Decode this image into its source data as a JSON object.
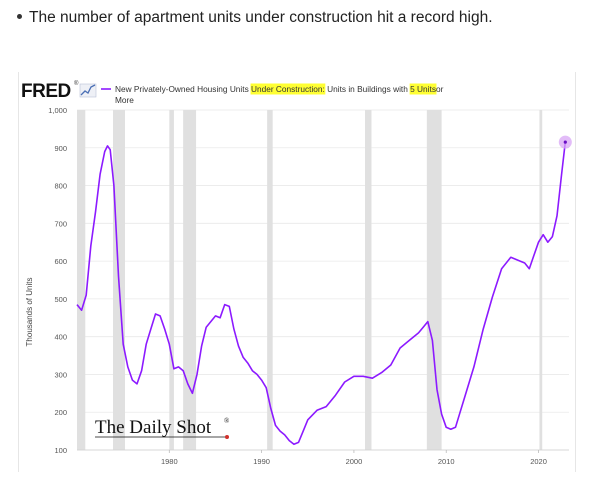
{
  "headline": "The number of apartment units under construction hit a record high.",
  "logo": {
    "text": "FRED",
    "trademark": "®",
    "icon": "fred-chart-icon"
  },
  "watermark": {
    "text": "The Daily Shot",
    "trademark": "®"
  },
  "colors": {
    "series": "#8c1aff",
    "recession": "#e0e0e0",
    "highlight": "#ffff33",
    "last_point_halo": "#d8a6f5"
  },
  "chart_data": {
    "type": "line",
    "title_parts": [
      {
        "text": "New Privately-Owned Housing Units ",
        "highlight": false
      },
      {
        "text": "Under Construction:",
        "highlight": true
      },
      {
        "text": " Units in Buildings with ",
        "highlight": false
      },
      {
        "text": "5 Units",
        "highlight": true
      },
      {
        "text": " or More",
        "highlight": false
      }
    ],
    "ylabel": "Thousands of Units",
    "xlabel": "",
    "ylim": [
      100,
      1000
    ],
    "xlim": [
      1970.0,
      2023.3
    ],
    "yticks": [
      "100",
      "200",
      "300",
      "400",
      "500",
      "600",
      "700",
      "800",
      "900",
      "1,000"
    ],
    "xticks": [
      "1980",
      "1990",
      "2000",
      "2010",
      "2020"
    ],
    "grid": "horizontal",
    "recessions": [
      [
        1970.0,
        1970.9
      ],
      [
        1973.9,
        1975.2
      ],
      [
        1980.0,
        1980.5
      ],
      [
        1981.5,
        1982.9
      ],
      [
        1990.6,
        1991.2
      ],
      [
        2001.2,
        2001.9
      ],
      [
        2007.9,
        2009.5
      ],
      [
        2020.1,
        2020.4
      ]
    ],
    "series": [
      {
        "x": [
          1970.0,
          1970.5,
          1971.0,
          1971.5,
          1972.0,
          1972.5,
          1973.0,
          1973.3,
          1973.6,
          1974.0,
          1974.5,
          1975.0,
          1975.5,
          1976.0,
          1976.5,
          1977.0,
          1977.5,
          1978.0,
          1978.5,
          1979.0,
          1979.5,
          1980.0,
          1980.5,
          1981.0,
          1981.5,
          1982.0,
          1982.5,
          1983.0,
          1983.5,
          1984.0,
          1984.5,
          1985.0,
          1985.5,
          1986.0,
          1986.5,
          1987.0,
          1987.5,
          1988.0,
          1988.5,
          1989.0,
          1989.5,
          1990.0,
          1990.5,
          1991.0,
          1991.5,
          1992.0,
          1992.5,
          1993.0,
          1993.5,
          1994.0,
          1994.5,
          1995.0,
          1996.0,
          1997.0,
          1998.0,
          1999.0,
          2000.0,
          2001.0,
          2002.0,
          2003.0,
          2004.0,
          2005.0,
          2006.0,
          2007.0,
          2007.5,
          2008.0,
          2008.5,
          2009.0,
          2009.5,
          2010.0,
          2010.5,
          2011.0,
          2011.5,
          2012.0,
          2012.5,
          2013.0,
          2014.0,
          2015.0,
          2016.0,
          2017.0,
          2018.0,
          2018.5,
          2019.0,
          2019.5,
          2020.0,
          2020.5,
          2021.0,
          2021.5,
          2022.0,
          2022.5,
          2022.9
        ],
        "values": [
          485,
          470,
          510,
          640,
          730,
          830,
          890,
          905,
          895,
          800,
          560,
          380,
          320,
          285,
          275,
          310,
          380,
          420,
          460,
          455,
          420,
          380,
          315,
          320,
          310,
          275,
          250,
          300,
          375,
          425,
          440,
          455,
          450,
          485,
          480,
          420,
          375,
          345,
          330,
          310,
          300,
          285,
          265,
          210,
          165,
          150,
          140,
          125,
          115,
          120,
          150,
          180,
          205,
          215,
          245,
          280,
          295,
          295,
          290,
          305,
          325,
          370,
          390,
          410,
          425,
          440,
          390,
          260,
          195,
          160,
          155,
          160,
          200,
          240,
          280,
          320,
          420,
          505,
          580,
          610,
          600,
          595,
          580,
          615,
          650,
          670,
          650,
          665,
          720,
          830,
          915
        ]
      }
    ]
  }
}
